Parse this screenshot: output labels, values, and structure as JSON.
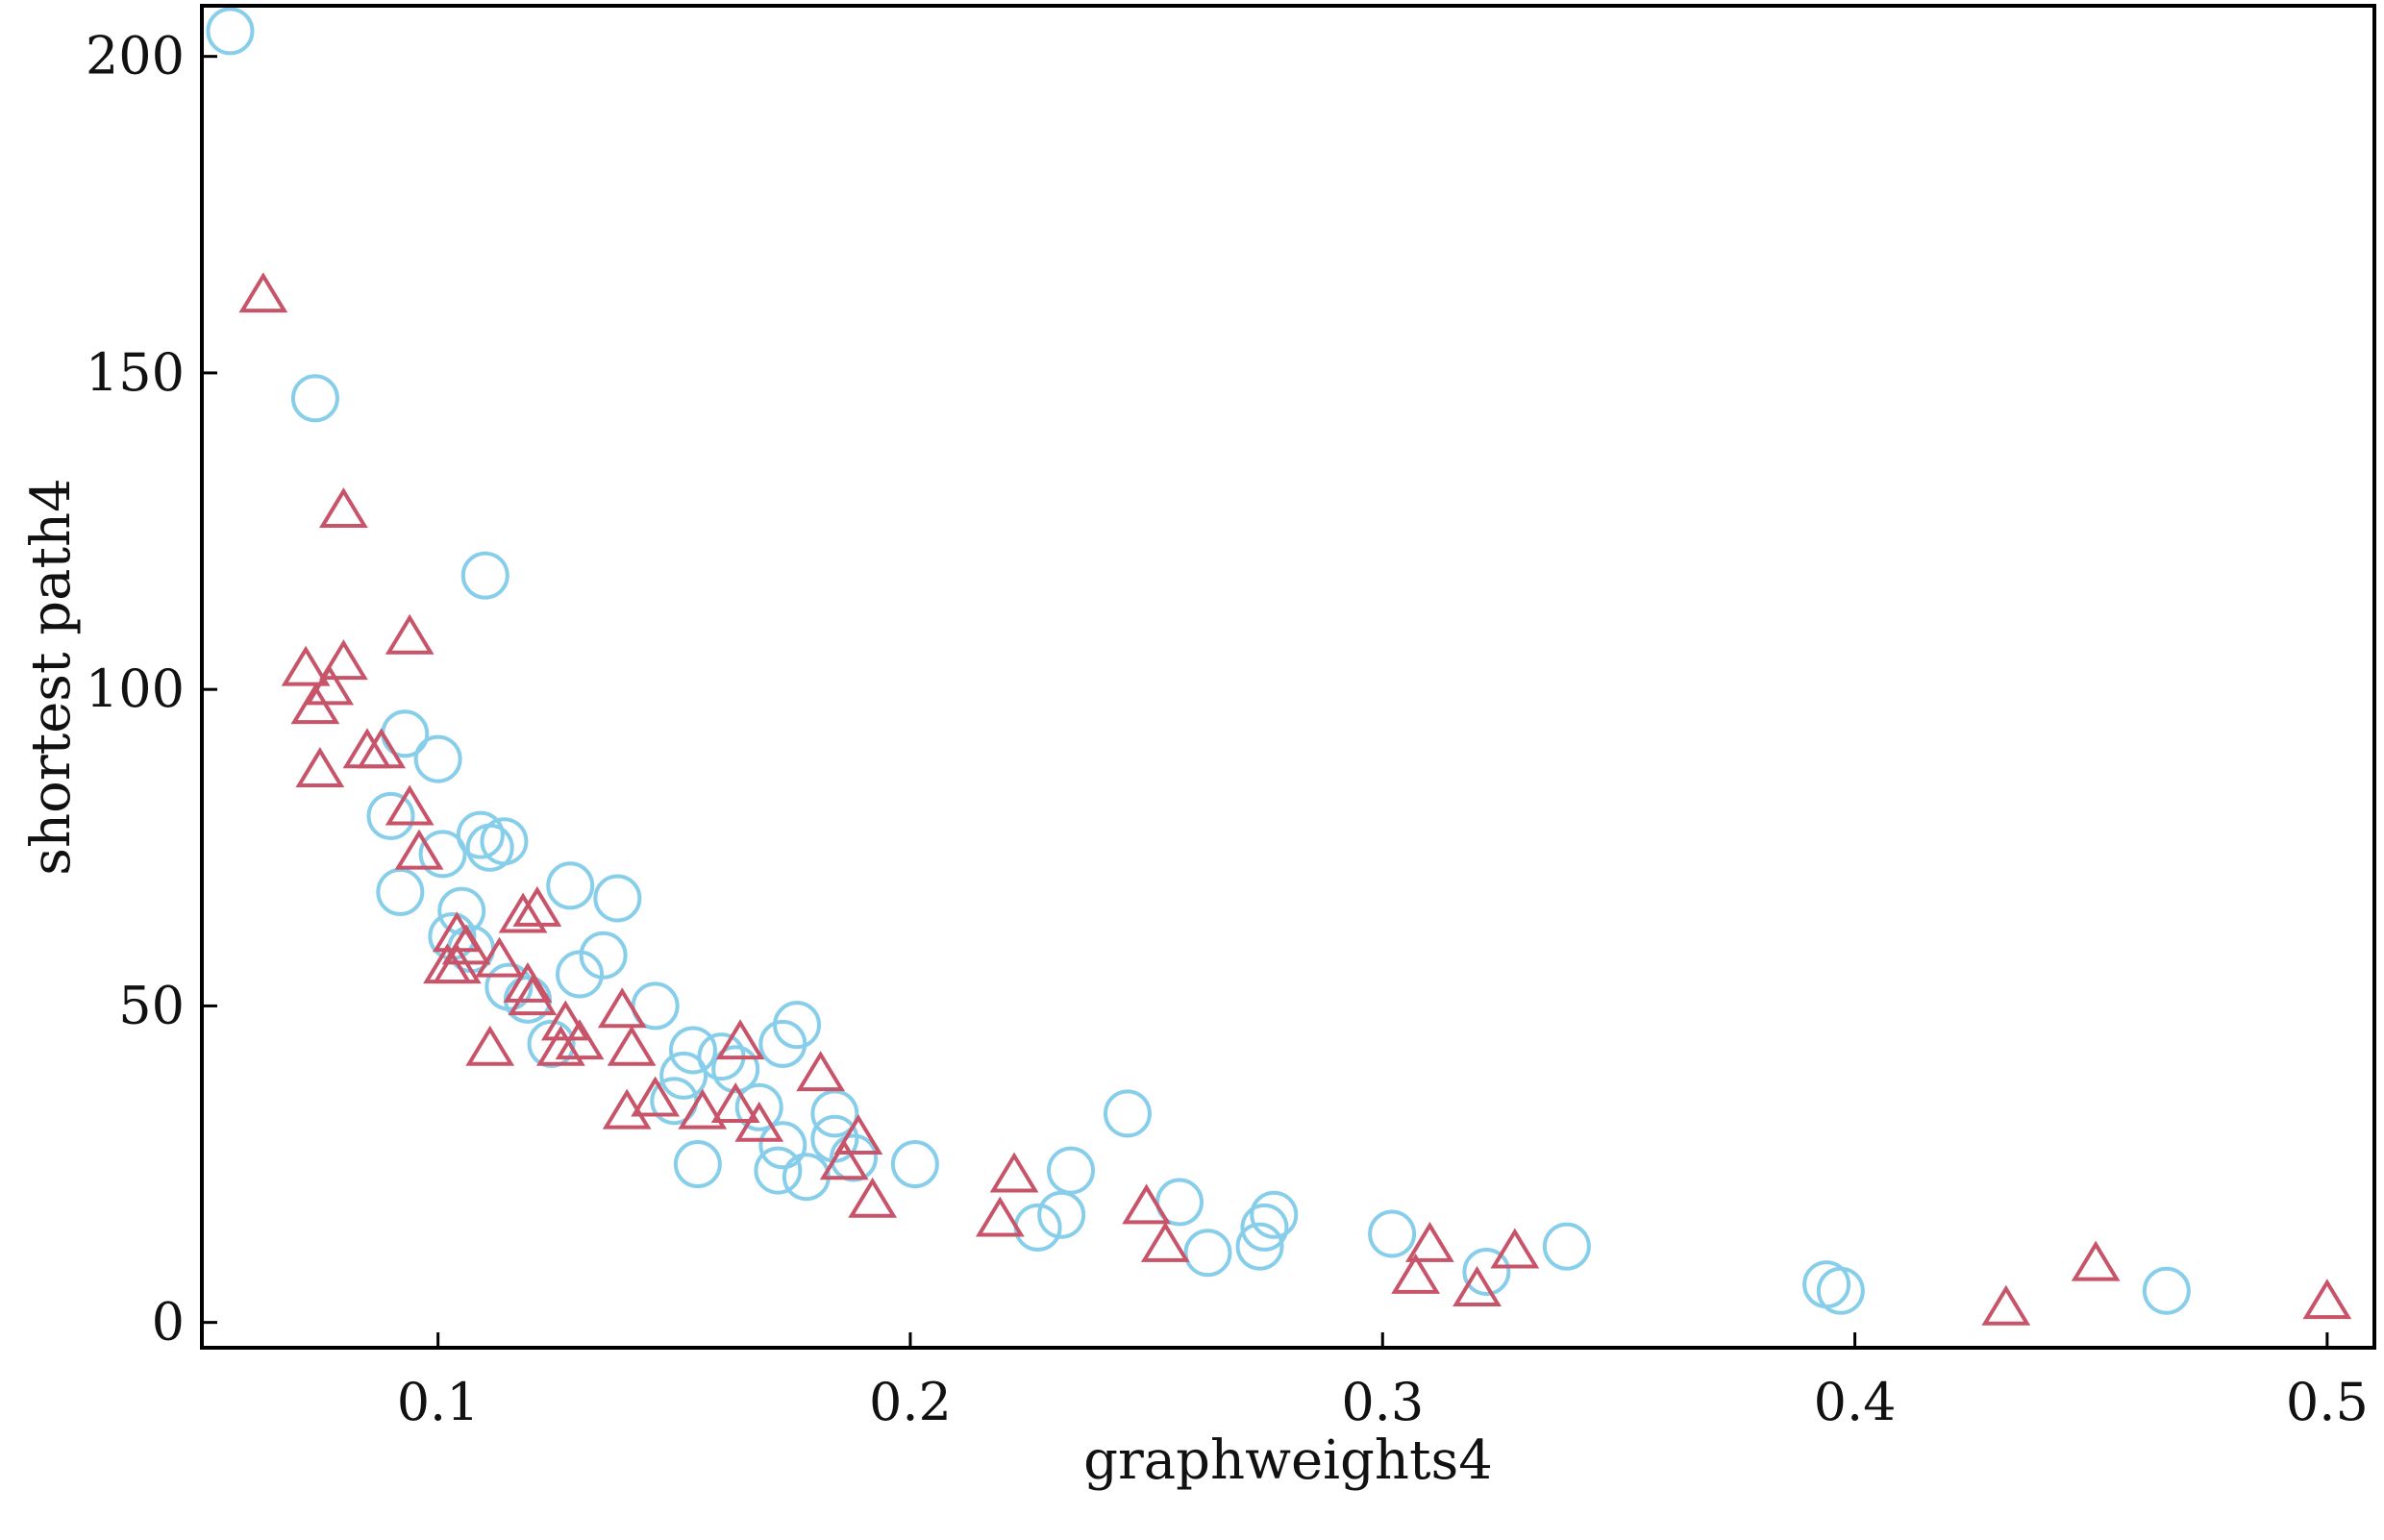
{
  "chart_data": {
    "type": "scatter",
    "title": "",
    "xlabel": "graphweights4",
    "ylabel": "shortest path4",
    "xlim": [
      0.05,
      0.51
    ],
    "ylim": [
      -4,
      208
    ],
    "x_ticks": [
      0.1,
      0.2,
      0.3,
      0.4,
      0.5
    ],
    "x_tick_labels": [
      "0.1",
      "0.2",
      "0.3",
      "0.4",
      "0.5"
    ],
    "y_ticks": [
      0,
      50,
      100,
      150,
      200
    ],
    "y_tick_labels": [
      "0",
      "50",
      "100",
      "150",
      "200"
    ],
    "grid": false,
    "series": [
      {
        "marker": "circle",
        "color": "#87ceeb",
        "points": [
          [
            0.056,
            204
          ],
          [
            0.074,
            146
          ],
          [
            0.11,
            118
          ],
          [
            0.093,
            93
          ],
          [
            0.1,
            89
          ],
          [
            0.09,
            80
          ],
          [
            0.109,
            77
          ],
          [
            0.111,
            75
          ],
          [
            0.114,
            76
          ],
          [
            0.101,
            74
          ],
          [
            0.128,
            69
          ],
          [
            0.092,
            68
          ],
          [
            0.138,
            67
          ],
          [
            0.105,
            65
          ],
          [
            0.103,
            61
          ],
          [
            0.107,
            59
          ],
          [
            0.135,
            58
          ],
          [
            0.13,
            55
          ],
          [
            0.115,
            53
          ],
          [
            0.119,
            51
          ],
          [
            0.124,
            44
          ],
          [
            0.146,
            50
          ],
          [
            0.176,
            47
          ],
          [
            0.173,
            44
          ],
          [
            0.154,
            43
          ],
          [
            0.16,
            42
          ],
          [
            0.152,
            39
          ],
          [
            0.163,
            40
          ],
          [
            0.15,
            35
          ],
          [
            0.168,
            34
          ],
          [
            0.184,
            33
          ],
          [
            0.184,
            29
          ],
          [
            0.188,
            26
          ],
          [
            0.173,
            28
          ],
          [
            0.201,
            25
          ],
          [
            0.155,
            25
          ],
          [
            0.172,
            24
          ],
          [
            0.178,
            23
          ],
          [
            0.246,
            33
          ],
          [
            0.234,
            24
          ],
          [
            0.227,
            15
          ],
          [
            0.232,
            17
          ],
          [
            0.257,
            19
          ],
          [
            0.263,
            11
          ],
          [
            0.274,
            12
          ],
          [
            0.275,
            15
          ],
          [
            0.277,
            17
          ],
          [
            0.302,
            14
          ],
          [
            0.322,
            8
          ],
          [
            0.339,
            12
          ],
          [
            0.394,
            6
          ],
          [
            0.397,
            5
          ],
          [
            0.466,
            5
          ]
        ]
      },
      {
        "marker": "triangle",
        "color": "#c8546a",
        "points": [
          [
            0.063,
            162
          ],
          [
            0.08,
            128
          ],
          [
            0.094,
            108
          ],
          [
            0.072,
            103
          ],
          [
            0.08,
            104
          ],
          [
            0.074,
            97
          ],
          [
            0.077,
            100
          ],
          [
            0.085,
            90
          ],
          [
            0.088,
            90
          ],
          [
            0.075,
            87
          ],
          [
            0.094,
            81
          ],
          [
            0.096,
            74
          ],
          [
            0.104,
            61
          ],
          [
            0.106,
            59
          ],
          [
            0.102,
            56
          ],
          [
            0.104,
            56
          ],
          [
            0.113,
            57
          ],
          [
            0.118,
            64
          ],
          [
            0.121,
            65
          ],
          [
            0.119,
            53
          ],
          [
            0.12,
            51
          ],
          [
            0.127,
            47
          ],
          [
            0.13,
            44
          ],
          [
            0.126,
            43
          ],
          [
            0.111,
            43
          ],
          [
            0.139,
            49
          ],
          [
            0.141,
            43
          ],
          [
            0.14,
            33
          ],
          [
            0.146,
            35
          ],
          [
            0.156,
            33
          ],
          [
            0.164,
            44
          ],
          [
            0.163,
            34
          ],
          [
            0.168,
            31
          ],
          [
            0.181,
            39
          ],
          [
            0.189,
            29
          ],
          [
            0.186,
            25
          ],
          [
            0.192,
            19
          ],
          [
            0.219,
            16
          ],
          [
            0.222,
            23
          ],
          [
            0.25,
            18
          ],
          [
            0.254,
            12
          ],
          [
            0.307,
            7
          ],
          [
            0.31,
            12
          ],
          [
            0.32,
            5
          ],
          [
            0.328,
            11
          ],
          [
            0.432,
            2
          ],
          [
            0.451,
            9
          ],
          [
            0.5,
            3
          ]
        ]
      }
    ]
  }
}
